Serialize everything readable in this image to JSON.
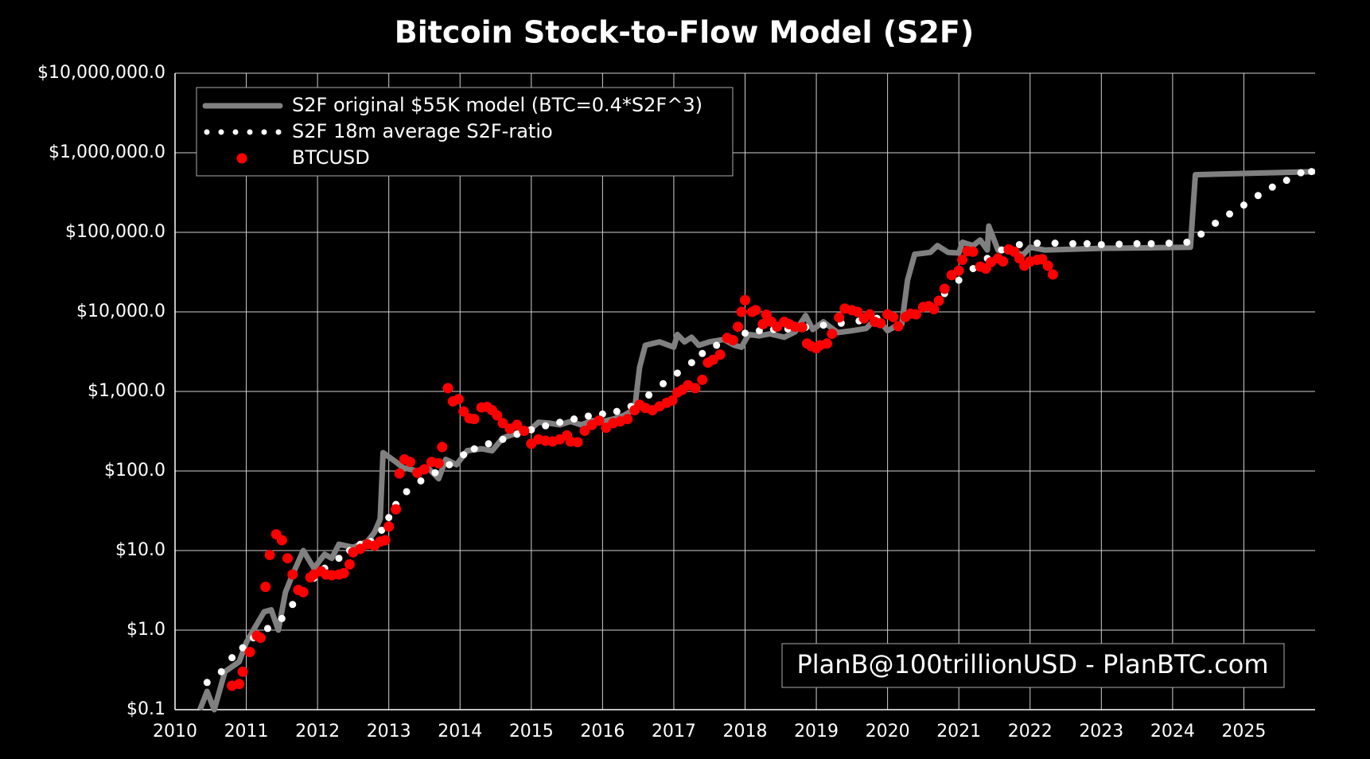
{
  "chart_data": {
    "type": "line",
    "title": "Bitcoin Stock-to-Flow Model (S2F)",
    "annotation": "PlanB@100trillionUSD - PlanBTC.com",
    "log_y": true,
    "grid": true,
    "legend": "upper left",
    "xlim": [
      2010,
      2026
    ],
    "xticks": [
      2010,
      2011,
      2012,
      2013,
      2014,
      2015,
      2016,
      2017,
      2018,
      2019,
      2020,
      2021,
      2022,
      2023,
      2024,
      2025
    ],
    "ylim": [
      0.1,
      10000000
    ],
    "yticks": [
      {
        "value": 0.1,
        "label": "$0.1"
      },
      {
        "value": 1,
        "label": "$1.0"
      },
      {
        "value": 10,
        "label": "$10.0"
      },
      {
        "value": 100,
        "label": "$100.0"
      },
      {
        "value": 1000,
        "label": "$1,000.0"
      },
      {
        "value": 10000,
        "label": "$10,000.0"
      },
      {
        "value": 100000,
        "label": "$100,000.0"
      },
      {
        "value": 1000000,
        "label": "$1,000,000.0"
      },
      {
        "value": 10000000,
        "label": "$10,000,000.0"
      }
    ],
    "series": [
      {
        "name": "S2F original $55K model (BTC=0.4*S2F^3)",
        "color": "#808080",
        "style": "line",
        "x": [
          2010.35,
          2010.45,
          2010.55,
          2010.7,
          2010.9,
          2011.0,
          2011.1,
          2011.25,
          2011.35,
          2011.45,
          2011.55,
          2011.65,
          2011.8,
          2011.95,
          2012.1,
          2012.2,
          2012.3,
          2012.5,
          2012.7,
          2012.8,
          2012.88,
          2012.92,
          2013.1,
          2013.2,
          2013.4,
          2013.55,
          2013.7,
          2013.8,
          2013.95,
          2014.1,
          2014.3,
          2014.45,
          2014.6,
          2014.8,
          2015.0,
          2015.1,
          2015.25,
          2015.4,
          2015.55,
          2015.7,
          2015.85,
          2016.0,
          2016.15,
          2016.3,
          2016.45,
          2016.52,
          2016.6,
          2016.8,
          2017.0,
          2017.05,
          2017.15,
          2017.25,
          2017.35,
          2017.5,
          2017.7,
          2017.85,
          2017.95,
          2018.05,
          2018.2,
          2018.35,
          2018.55,
          2018.7,
          2018.85,
          2018.95,
          2019.1,
          2019.3,
          2019.5,
          2019.7,
          2019.85,
          2020.0,
          2020.1,
          2020.2,
          2020.28,
          2020.38,
          2020.6,
          2020.7,
          2020.85,
          2021.0,
          2021.05,
          2021.2,
          2021.3,
          2021.4,
          2021.42,
          2021.55,
          2021.7,
          2021.9,
          2022.0,
          2022.2,
          2023.0,
          2024.25,
          2024.32,
          2025.0,
          2026.0
        ],
        "values": [
          0.1,
          0.17,
          0.1,
          0.3,
          0.4,
          0.7,
          1.0,
          1.7,
          1.8,
          1.0,
          3,
          5,
          10,
          6,
          9,
          8,
          12,
          11,
          13,
          17,
          25,
          170,
          130,
          110,
          100,
          110,
          80,
          140,
          120,
          180,
          190,
          180,
          260,
          300,
          340,
          410,
          400,
          380,
          420,
          380,
          430,
          420,
          450,
          500,
          600,
          2000,
          3800,
          4200,
          3600,
          5200,
          4200,
          4800,
          3800,
          4200,
          4500,
          3800,
          3600,
          5200,
          5000,
          5300,
          4800,
          5600,
          9000,
          6000,
          7500,
          5500,
          5800,
          6200,
          8500,
          5800,
          6500,
          7000,
          25000,
          53000,
          56000,
          68000,
          56000,
          55000,
          75000,
          68000,
          80000,
          60000,
          120000,
          60000,
          60000,
          52000,
          65000,
          60000,
          63000,
          65000,
          530000,
          550000,
          580000
        ]
      },
      {
        "name": "S2F 18m average S2F-ratio",
        "color": "#ffffff",
        "style": "dots",
        "x": [
          2010.45,
          2010.65,
          2010.8,
          2010.95,
          2011.1,
          2011.3,
          2011.5,
          2011.65,
          2011.8,
          2011.95,
          2012.1,
          2012.3,
          2012.45,
          2012.6,
          2012.75,
          2012.9,
          2013.0,
          2013.1,
          2013.25,
          2013.45,
          2013.65,
          2013.85,
          2014.05,
          2014.2,
          2014.4,
          2014.6,
          2014.8,
          2015.0,
          2015.2,
          2015.4,
          2015.6,
          2015.8,
          2016.0,
          2016.2,
          2016.4,
          2016.65,
          2016.85,
          2017.05,
          2017.25,
          2017.4,
          2017.6,
          2017.8,
          2018.0,
          2018.2,
          2018.4,
          2018.6,
          2018.85,
          2019.1,
          2019.35,
          2019.6,
          2019.85,
          2020.05,
          2020.3,
          2020.6,
          2020.8,
          2021.0,
          2021.2,
          2021.4,
          2021.6,
          2021.85,
          2022.1,
          2022.35,
          2022.6,
          2022.8,
          2023.0,
          2023.25,
          2023.5,
          2023.7,
          2023.95,
          2024.2,
          2024.4,
          2024.6,
          2024.8,
          2025.0,
          2025.2,
          2025.4,
          2025.6,
          2025.8,
          2025.95
        ],
        "values": [
          0.22,
          0.3,
          0.45,
          0.6,
          0.8,
          1.05,
          1.4,
          2.1,
          3,
          4.5,
          6,
          8,
          10,
          12,
          13,
          18,
          26,
          38,
          55,
          75,
          95,
          120,
          160,
          190,
          220,
          250,
          290,
          330,
          370,
          410,
          450,
          490,
          520,
          560,
          650,
          900,
          1250,
          1700,
          2300,
          3000,
          3800,
          4600,
          5400,
          5800,
          6000,
          6100,
          6400,
          6800,
          7200,
          7700,
          8300,
          9000,
          9500,
          12000,
          17000,
          25000,
          35000,
          47000,
          60000,
          70000,
          73000,
          73000,
          72000,
          72000,
          70000,
          71000,
          72000,
          72000,
          73000,
          75000,
          95000,
          130000,
          170000,
          220000,
          290000,
          370000,
          450000,
          560000,
          580000
        ]
      },
      {
        "name": "BTCUSD",
        "color": "#ff0000",
        "style": "scatter",
        "x": [
          2010.8,
          2010.9,
          2010.95,
          2011.05,
          2011.15,
          2011.2,
          2011.27,
          2011.33,
          2011.42,
          2011.5,
          2011.58,
          2011.65,
          2011.73,
          2011.8,
          2011.9,
          2011.95,
          2012.05,
          2012.12,
          2012.2,
          2012.3,
          2012.37,
          2012.45,
          2012.5,
          2012.6,
          2012.7,
          2012.8,
          2012.88,
          2012.95,
          2013.0,
          2013.1,
          2013.15,
          2013.22,
          2013.3,
          2013.4,
          2013.5,
          2013.6,
          2013.7,
          2013.75,
          2013.83,
          2013.9,
          2013.98,
          2014.05,
          2014.13,
          2014.2,
          2014.3,
          2014.38,
          2014.45,
          2014.52,
          2014.6,
          2014.7,
          2014.8,
          2014.9,
          2015.0,
          2015.1,
          2015.2,
          2015.3,
          2015.4,
          2015.5,
          2015.55,
          2015.65,
          2015.75,
          2015.85,
          2015.95,
          2016.05,
          2016.15,
          2016.25,
          2016.35,
          2016.45,
          2016.52,
          2016.6,
          2016.7,
          2016.8,
          2016.9,
          2016.98,
          2017.05,
          2017.12,
          2017.2,
          2017.3,
          2017.4,
          2017.48,
          2017.55,
          2017.65,
          2017.75,
          2017.83,
          2017.9,
          2017.95,
          2018.0,
          2018.1,
          2018.15,
          2018.25,
          2018.3,
          2018.37,
          2018.45,
          2018.55,
          2018.62,
          2018.7,
          2018.8,
          2018.87,
          2018.93,
          2019.0,
          2019.05,
          2019.15,
          2019.22,
          2019.32,
          2019.4,
          2019.5,
          2019.58,
          2019.67,
          2019.75,
          2019.82,
          2019.9,
          2020.0,
          2020.08,
          2020.15,
          2020.25,
          2020.32,
          2020.4,
          2020.5,
          2020.58,
          2020.65,
          2020.72,
          2020.8,
          2020.9,
          2021.0,
          2021.05,
          2021.12,
          2021.2,
          2021.3,
          2021.38,
          2021.45,
          2021.55,
          2021.62,
          2021.7,
          2021.78,
          2021.85,
          2021.92,
          2022.0,
          2022.1,
          2022.17,
          2022.25,
          2022.32
        ],
        "values": [
          0.2,
          0.21,
          0.3,
          0.53,
          0.85,
          0.8,
          3.5,
          8.8,
          16,
          13.5,
          8,
          5,
          3.2,
          3,
          4.6,
          5,
          5.5,
          5,
          4.9,
          5,
          5.2,
          6.7,
          9.5,
          10.5,
          12,
          11.5,
          13,
          13.5,
          20,
          33,
          93,
          140,
          130,
          95,
          105,
          130,
          125,
          200,
          1100,
          750,
          800,
          560,
          460,
          450,
          630,
          640,
          580,
          500,
          400,
          340,
          380,
          320,
          220,
          250,
          240,
          235,
          250,
          280,
          235,
          230,
          320,
          380,
          430,
          350,
          400,
          420,
          450,
          580,
          680,
          620,
          580,
          650,
          720,
          770,
          970,
          1050,
          1200,
          1100,
          1400,
          2300,
          2500,
          2900,
          4700,
          4400,
          6500,
          10000,
          14000,
          10000,
          10500,
          7000,
          9200,
          7500,
          6500,
          7500,
          7000,
          6500,
          6400,
          4000,
          3700,
          3500,
          3800,
          4000,
          5300,
          8500,
          11000,
          10500,
          10000,
          8300,
          9300,
          7500,
          7200,
          9300,
          8600,
          6600,
          8600,
          9500,
          9300,
          11500,
          11800,
          10800,
          13800,
          19500,
          29000,
          33000,
          45000,
          58000,
          57000,
          37000,
          35000,
          42000,
          47000,
          43000,
          61000,
          57000,
          47000,
          38000,
          43000,
          45000,
          46000,
          38000,
          29500
        ]
      }
    ]
  }
}
